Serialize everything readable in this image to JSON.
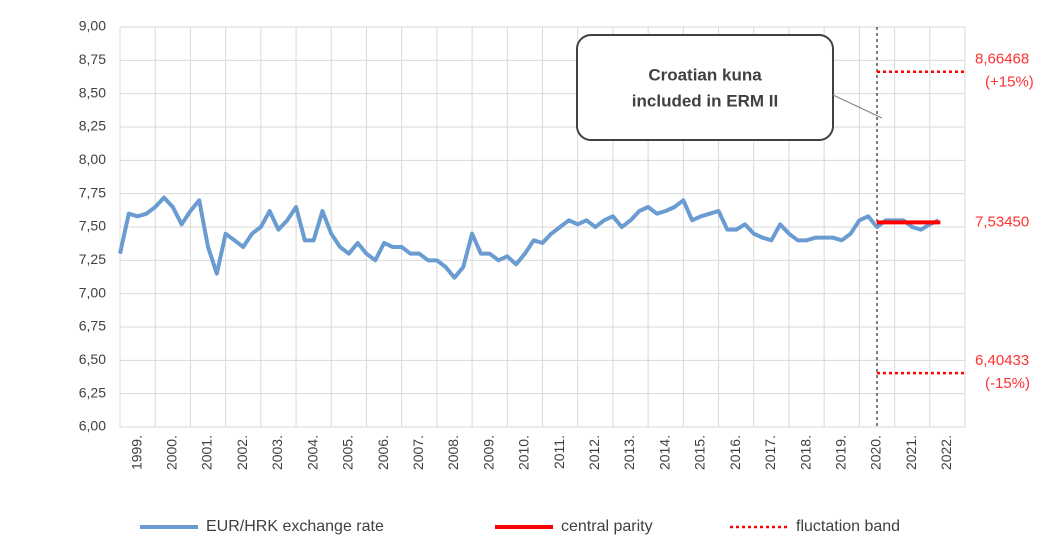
{
  "chart_data": {
    "type": "line",
    "annotation": [
      "Croatian kuna",
      "included in ERM II"
    ],
    "xlim": [
      1999,
      2023
    ],
    "xticks": [
      {
        "value": 1999,
        "label": "1999."
      },
      {
        "value": 2000,
        "label": "2000."
      },
      {
        "value": 2001,
        "label": "2001."
      },
      {
        "value": 2002,
        "label": "2002."
      },
      {
        "value": 2003,
        "label": "2003."
      },
      {
        "value": 2004,
        "label": "2004."
      },
      {
        "value": 2005,
        "label": "2005."
      },
      {
        "value": 2006,
        "label": "2006."
      },
      {
        "value": 2007,
        "label": "2007."
      },
      {
        "value": 2008,
        "label": "2008."
      },
      {
        "value": 2009,
        "label": "2009."
      },
      {
        "value": 2010,
        "label": "2010."
      },
      {
        "value": 2011,
        "label": "2011."
      },
      {
        "value": 2012,
        "label": "2012."
      },
      {
        "value": 2013,
        "label": "2013."
      },
      {
        "value": 2014,
        "label": "2014."
      },
      {
        "value": 2015,
        "label": "2015."
      },
      {
        "value": 2016,
        "label": "2016."
      },
      {
        "value": 2017,
        "label": "2017."
      },
      {
        "value": 2018,
        "label": "2018."
      },
      {
        "value": 2019,
        "label": "2019."
      },
      {
        "value": 2020,
        "label": "2020."
      },
      {
        "value": 2021,
        "label": "2021."
      },
      {
        "value": 2022,
        "label": "2022."
      }
    ],
    "ylim": [
      6,
      9
    ],
    "yticks": [
      {
        "value": 6,
        "label": "6,00"
      },
      {
        "value": 6.25,
        "label": "6,25"
      },
      {
        "value": 6.5,
        "label": "6,50"
      },
      {
        "value": 6.75,
        "label": "6,75"
      },
      {
        "value": 7,
        "label": "7,00"
      },
      {
        "value": 7.25,
        "label": "7,25"
      },
      {
        "value": 7.5,
        "label": "7,50"
      },
      {
        "value": 7.75,
        "label": "7,75"
      },
      {
        "value": 8,
        "label": "8,00"
      },
      {
        "value": 8.25,
        "label": "8,25"
      },
      {
        "value": 8.5,
        "label": "8,50"
      },
      {
        "value": 8.75,
        "label": "8,75"
      },
      {
        "value": 9,
        "label": "9,00"
      }
    ],
    "grid": true,
    "erm_entry": 2020.5,
    "series": [
      {
        "name": "EUR/HRK exchange rate",
        "color": "#6a9bd1",
        "x": [
          1999,
          1999.25,
          1999.5,
          1999.75,
          2000,
          2000.25,
          2000.5,
          2000.75,
          2001,
          2001.25,
          2001.5,
          2001.75,
          2002,
          2002.25,
          2002.5,
          2002.75,
          2003,
          2003.25,
          2003.5,
          2003.75,
          2004,
          2004.25,
          2004.5,
          2004.75,
          2005,
          2005.25,
          2005.5,
          2005.75,
          2006,
          2006.25,
          2006.5,
          2006.75,
          2007,
          2007.25,
          2007.5,
          2007.75,
          2008,
          2008.25,
          2008.5,
          2008.75,
          2009,
          2009.25,
          2009.5,
          2009.75,
          2010,
          2010.25,
          2010.5,
          2010.75,
          2011,
          2011.25,
          2011.5,
          2011.75,
          2012,
          2012.25,
          2012.5,
          2012.75,
          2013,
          2013.25,
          2013.5,
          2013.75,
          2014,
          2014.25,
          2014.5,
          2014.75,
          2015,
          2015.25,
          2015.5,
          2015.75,
          2016,
          2016.25,
          2016.5,
          2016.75,
          2017,
          2017.25,
          2017.5,
          2017.75,
          2018,
          2018.25,
          2018.5,
          2018.75,
          2019,
          2019.25,
          2019.5,
          2019.75,
          2020,
          2020.25,
          2020.5,
          2020.75,
          2021,
          2021.25,
          2021.5,
          2021.75,
          2022,
          2022.25
        ],
        "values": [
          7.3,
          7.6,
          7.58,
          7.6,
          7.65,
          7.72,
          7.65,
          7.52,
          7.62,
          7.7,
          7.35,
          7.15,
          7.45,
          7.4,
          7.35,
          7.45,
          7.5,
          7.62,
          7.48,
          7.55,
          7.65,
          7.4,
          7.4,
          7.62,
          7.45,
          7.35,
          7.3,
          7.38,
          7.3,
          7.25,
          7.38,
          7.35,
          7.35,
          7.3,
          7.3,
          7.25,
          7.25,
          7.2,
          7.12,
          7.2,
          7.45,
          7.3,
          7.3,
          7.25,
          7.28,
          7.22,
          7.3,
          7.4,
          7.38,
          7.45,
          7.5,
          7.55,
          7.52,
          7.55,
          7.5,
          7.55,
          7.58,
          7.5,
          7.55,
          7.62,
          7.65,
          7.6,
          7.62,
          7.65,
          7.7,
          7.55,
          7.58,
          7.6,
          7.62,
          7.48,
          7.48,
          7.52,
          7.45,
          7.42,
          7.4,
          7.52,
          7.45,
          7.4,
          7.4,
          7.42,
          7.42,
          7.42,
          7.4,
          7.45,
          7.55,
          7.58,
          7.5,
          7.55,
          7.55,
          7.55,
          7.5,
          7.48,
          7.52,
          7.55
        ]
      },
      {
        "name": "central parity",
        "color": "#ff0000",
        "x": [
          2020.5,
          2022.3
        ],
        "level": {
          "value": 7.5345,
          "label": "7,53450"
        }
      },
      {
        "name": "fluctation band",
        "color": "#ff0000",
        "x": [
          2020.5,
          2023
        ],
        "upper": {
          "value": 8.66468,
          "label": "8,66468",
          "pct": "(+15%)"
        },
        "lower": {
          "value": 6.40433,
          "label": "6,40433",
          "pct": "(-15%)"
        }
      }
    ]
  }
}
